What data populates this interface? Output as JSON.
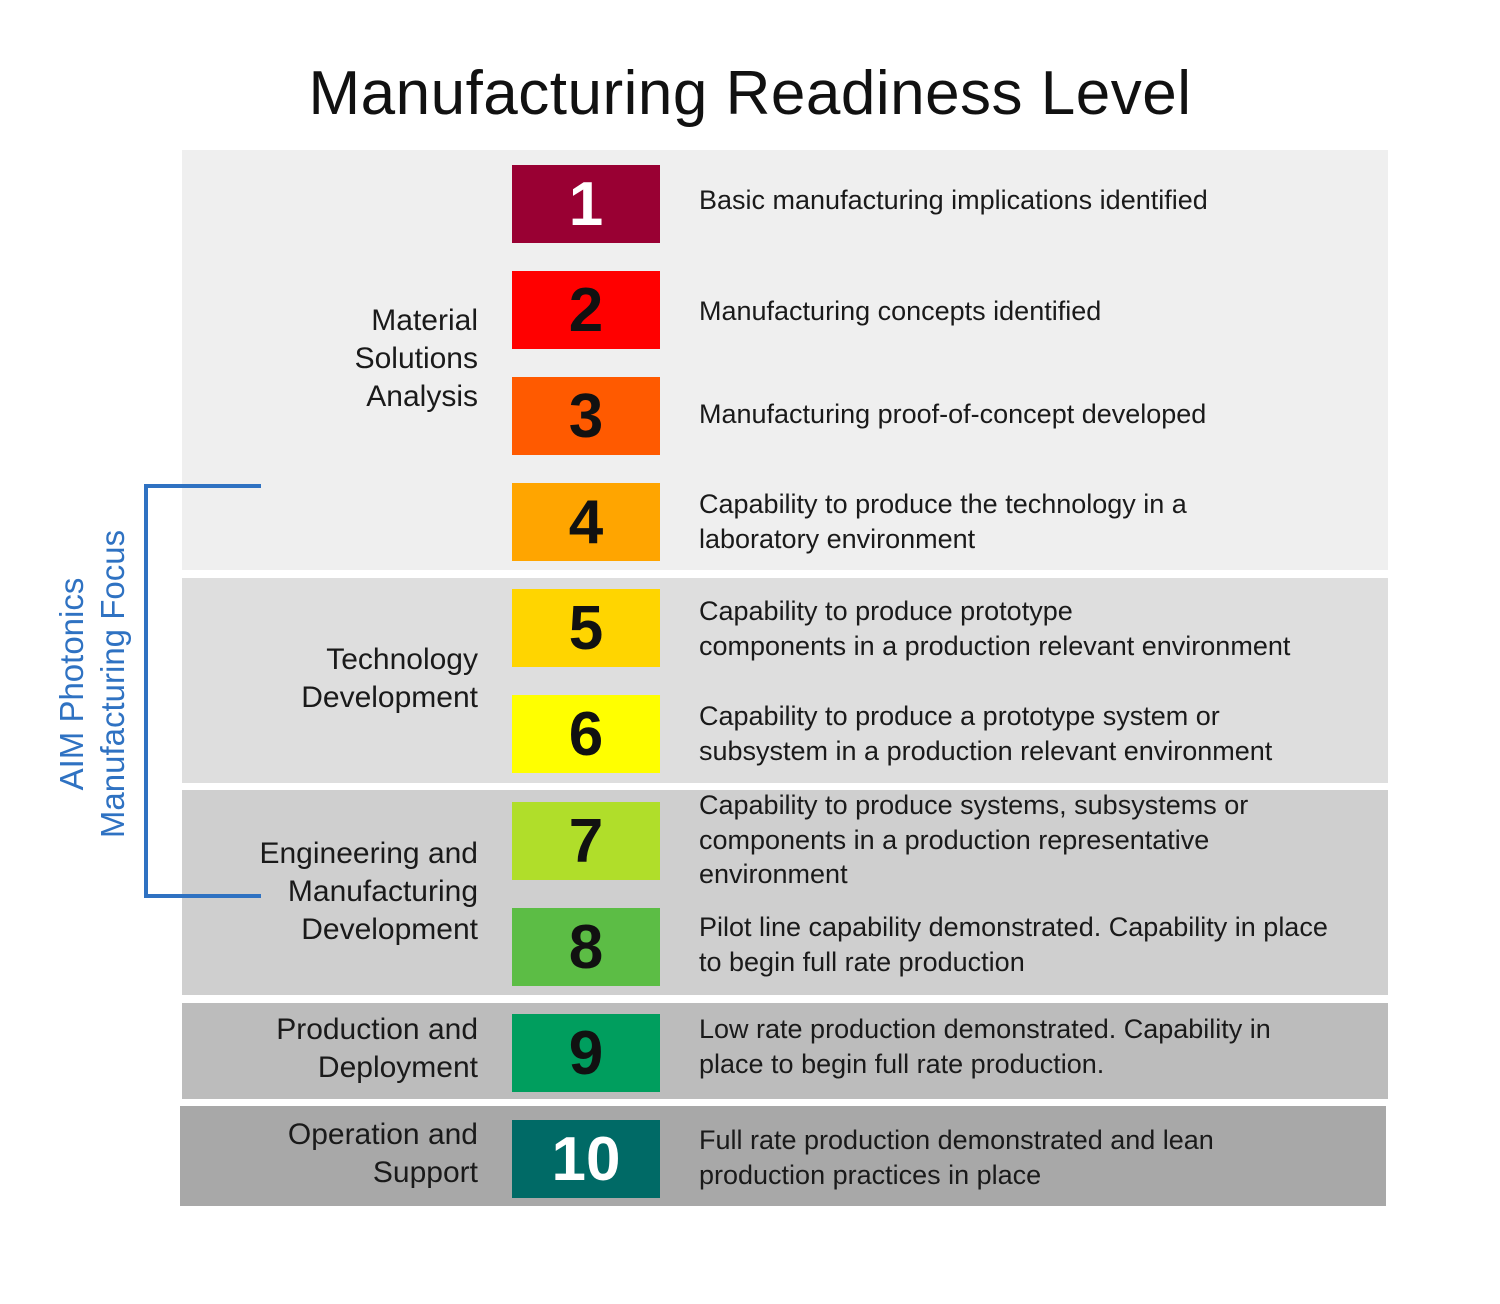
{
  "title": "Manufacturing Readiness Level",
  "phases": [
    {
      "lines": [
        "Material",
        "Solutions",
        "Analysis"
      ],
      "color": "#efefef"
    },
    {
      "lines": [
        "Technology",
        "Development"
      ],
      "color": "#dedede"
    },
    {
      "lines": [
        "Engineering and",
        "Manufacturing",
        "Development"
      ],
      "color": "#cfcfcf"
    },
    {
      "lines": [
        "Production and",
        "Deployment"
      ],
      "color": "#bcbcbc"
    },
    {
      "lines": [
        "Operation and",
        "Support"
      ],
      "color": "#a8a8a8"
    }
  ],
  "levels": [
    {
      "number": "1",
      "color": "#990033",
      "text_color": "#ffffff",
      "description": [
        "Basic manufacturing implications identified"
      ]
    },
    {
      "number": "2",
      "color": "#ff0000",
      "text_color": "#111111",
      "description": [
        "Manufacturing concepts identified"
      ]
    },
    {
      "number": "3",
      "color": "#ff5a00",
      "text_color": "#111111",
      "description": [
        "Manufacturing proof-of-concept developed"
      ]
    },
    {
      "number": "4",
      "color": "#ffa500",
      "text_color": "#111111",
      "description": [
        "Capability to produce the technology in a",
        "laboratory environment"
      ]
    },
    {
      "number": "5",
      "color": "#ffd500",
      "text_color": "#111111",
      "description": [
        "Capability to produce prototype",
        "components in a production relevant environment"
      ]
    },
    {
      "number": "6",
      "color": "#ffff00",
      "text_color": "#111111",
      "description": [
        "Capability to produce a prototype system or",
        "subsystem in a production relevant environment"
      ]
    },
    {
      "number": "7",
      "color": "#b0de2a",
      "text_color": "#111111",
      "description": [
        "Capability to produce systems, subsystems or",
        "components in a production representative",
        "environment"
      ]
    },
    {
      "number": "8",
      "color": "#5cbd45",
      "text_color": "#111111",
      "description": [
        "Pilot line capability demonstrated. Capability in place",
        "to begin full rate production"
      ]
    },
    {
      "number": "9",
      "color": "#009e5e",
      "text_color": "#111111",
      "description": [
        "Low rate production demonstrated. Capability in",
        "place to begin full rate production."
      ]
    },
    {
      "number": "10",
      "color": "#006a66",
      "text_color": "#ffffff",
      "description": [
        "Full rate production demonstrated and lean",
        "production practices in place"
      ]
    }
  ],
  "focus": {
    "lines": [
      "AIM Photonics",
      "Manufacturing Focus"
    ],
    "color": "#2f72c2"
  }
}
